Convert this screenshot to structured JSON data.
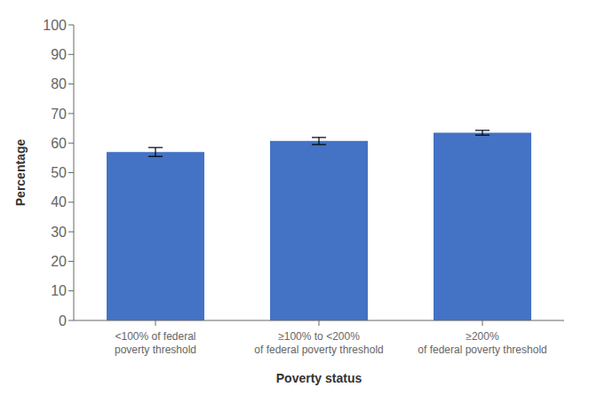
{
  "chart_data": {
    "type": "bar",
    "xlabel": "Poverty status",
    "ylabel": "Percentage",
    "categories": [
      "<100% of federal\npoverty threshold",
      "≥100% to <200%\nof federal poverty threshold",
      "≥200%\nof federal poverty threshold"
    ],
    "values": [
      57.0,
      60.7,
      63.5
    ],
    "errors": [
      1.5,
      1.2,
      0.8
    ],
    "color": "#4472C4",
    "ylim": [
      0,
      100
    ],
    "yticks": [
      0,
      10,
      20,
      30,
      40,
      50,
      60,
      70,
      80,
      90,
      100
    ],
    "grid": false
  }
}
